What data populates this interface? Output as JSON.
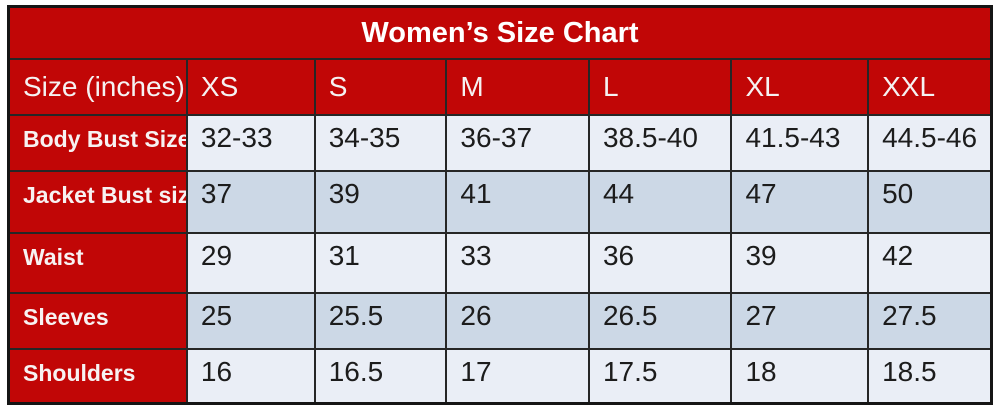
{
  "chart_data": {
    "type": "table",
    "title": "Women’s Size Chart",
    "unit_note": "inches",
    "columns": [
      "Size (inches)",
      "XS",
      "S",
      "M",
      "L",
      "XL",
      "XXL"
    ],
    "rows": [
      {
        "label": "Body Bust Size",
        "values": [
          "32-33",
          "34-35",
          "36-37",
          "38.5-40",
          "41.5-43",
          "44.5-46"
        ]
      },
      {
        "label": "Jacket Bust size",
        "values": [
          "37",
          "39",
          "41",
          "44",
          "47",
          "50"
        ]
      },
      {
        "label": "Waist",
        "values": [
          "29",
          "31",
          "33",
          "36",
          "39",
          "42"
        ]
      },
      {
        "label": "Sleeves",
        "values": [
          "25",
          "25.5",
          "26",
          "26.5",
          "27",
          "27.5"
        ]
      },
      {
        "label": "Shoulders",
        "values": [
          "16",
          "16.5",
          "17",
          "17.5",
          "18",
          "18.5"
        ]
      }
    ],
    "layout": {
      "title_position": "top-center",
      "row_shading": "alternating",
      "grid": "on"
    }
  },
  "colors": {
    "header_red": "#c10606",
    "row_light": "#eaeef6",
    "row_shaded": "#ccd8e6",
    "border_dark": "#1a1a1a",
    "text_light": "#ffffff",
    "text_dark": "#1c1c1c"
  }
}
